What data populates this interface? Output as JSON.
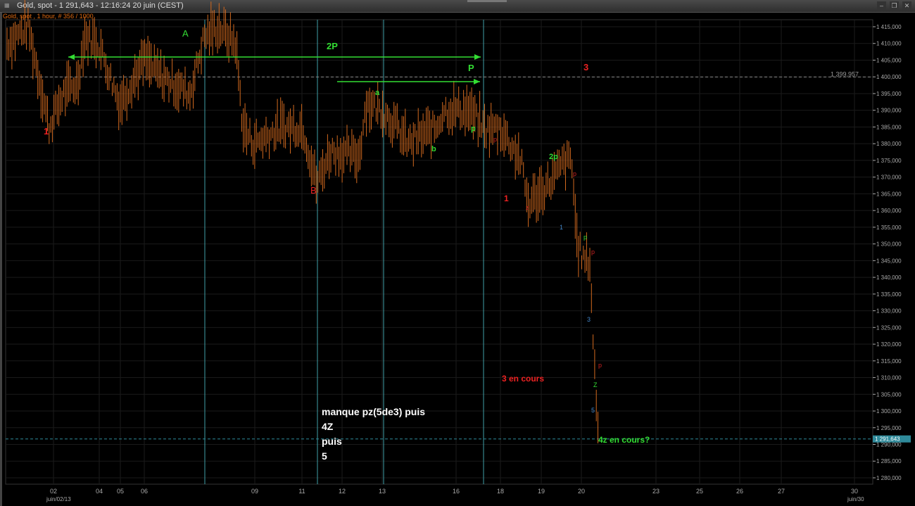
{
  "window": {
    "title": "Gold, spot - 1 291,643 - 12:16:24  20 juin (CEST)",
    "subtitle": "Gold, spot , 1 hour, # 356 / 1000",
    "buttons": [
      "minimize",
      "restore",
      "close"
    ]
  },
  "chart_data": {
    "type": "bar",
    "instrument": "Gold, spot",
    "timeframe": "1 hour",
    "y_ticks": [
      "1 415,000",
      "1 410,000",
      "1 405,000",
      "1 400,000",
      "1 395,000",
      "1 390,000",
      "1 385,000",
      "1 380,000",
      "1 375,000",
      "1 370,000",
      "1 365,000",
      "1 360,000",
      "1 355,000",
      "1 350,000",
      "1 345,000",
      "1 340,000",
      "1 335,000",
      "1 330,000",
      "1 325,000",
      "1 320,000",
      "1 315,000",
      "1 310,000",
      "1 305,000",
      "1 300,000",
      "1 295,000",
      "1 290,000",
      "1 285,000",
      "1 280,000"
    ],
    "ylim": [
      1278,
      1418
    ],
    "x_ticks": [
      "02",
      "04",
      "05",
      "06",
      "09",
      "11",
      "12",
      "13",
      "16",
      "18",
      "19",
      "20",
      "23",
      "25",
      "26",
      "27",
      "30"
    ],
    "x_sublabels": [
      "juin/02/13",
      "juin/30"
    ],
    "price_path": [
      1410,
      1415,
      1400,
      1385,
      1395,
      1398,
      1412,
      1410,
      1392,
      1405,
      1400,
      1395,
      1412,
      1415,
      1410,
      1385,
      1380,
      1385,
      1385,
      1368,
      1378,
      1376,
      1392,
      1390,
      1380,
      1385,
      1390,
      1390,
      1384,
      1385,
      1375,
      1362,
      1368,
      1374,
      1375,
      1350,
      1345,
      1345,
      1320,
      1292
    ],
    "hlines": [
      {
        "label": "1 399,957",
        "value": 1399.957,
        "color": "#888888"
      },
      {
        "label": "1 291,643",
        "value": 1291.643,
        "color": "#2f8a9a"
      }
    ],
    "candle_color": "#d2691e",
    "vline_color": "#3fa0a8"
  },
  "annotations": {
    "a1": "1",
    "A": "A",
    "p2": "2P",
    "P": "P",
    "three": "3",
    "a": "a",
    "p1": "p",
    "b": "b",
    "B": "B",
    "p2s": "2p",
    "one2": "1",
    "pr1": "p",
    "pr2": "p",
    "z": "z",
    "blue1": "1",
    "pg": "p",
    "pr3": "p",
    "blue3": "3",
    "encours": "3 en cours",
    "pr4": "p",
    "Z": "Z",
    "blue5": "5",
    "z4": "4z en cours?",
    "note": [
      "manque pz(5de3)  puis",
      "4Z",
      "puis",
      "5"
    ]
  }
}
